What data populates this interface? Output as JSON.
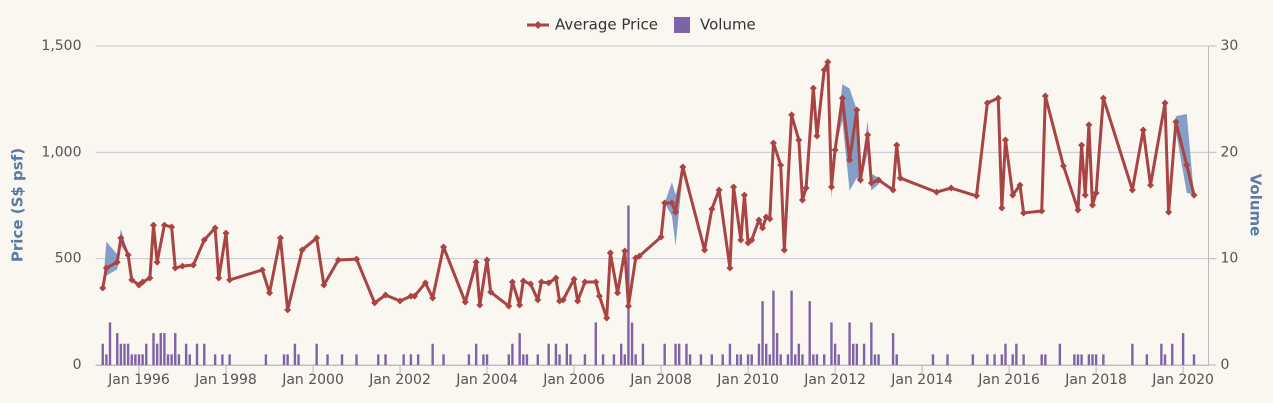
{
  "chart_data": {
    "type": "line",
    "xlim": [
      "1995-01",
      "2020-08"
    ],
    "xticks": [
      {
        "value": "1996-01",
        "label": "Jan 1996"
      },
      {
        "value": "1998-01",
        "label": "Jan 1998"
      },
      {
        "value": "2000-01",
        "label": "Jan 2000"
      },
      {
        "value": "2002-01",
        "label": "Jan 2002"
      },
      {
        "value": "2004-01",
        "label": "Jan 2004"
      },
      {
        "value": "2006-01",
        "label": "Jan 2006"
      },
      {
        "value": "2008-01",
        "label": "Jan 2008"
      },
      {
        "value": "2010-01",
        "label": "Jan 2010"
      },
      {
        "value": "2012-01",
        "label": "Jan 2012"
      },
      {
        "value": "2014-01",
        "label": "Jan 2014"
      },
      {
        "value": "2016-01",
        "label": "Jan 2016"
      },
      {
        "value": "2018-01",
        "label": "Jan 2018"
      },
      {
        "value": "2020-01",
        "label": "Jan 2020"
      }
    ],
    "ylabel": "Price (S$ psf)",
    "ylim": [
      0,
      1500
    ],
    "yticks": [
      0,
      500,
      {
        "value": 1000,
        "label": "1,000"
      },
      {
        "value": 1500,
        "label": "1,500"
      }
    ],
    "y2label": "Volume",
    "y2lim": [
      0,
      30
    ],
    "y2ticks": [
      0,
      10,
      20,
      30
    ],
    "grid": true,
    "legend": "top",
    "range": {
      "color": "#6f8fbf",
      "x": [
        "1995-03",
        "1995-04",
        "1995-07",
        "1995-08",
        "1995-10",
        "2001-01",
        "2008-02",
        "2008-04",
        "2008-05",
        "2008-07",
        "2009-01",
        "2010-01",
        "2011-11",
        "2011-12",
        "2012-01",
        "2012-03",
        "2012-05",
        "2012-07",
        "2012-08",
        "2012-10",
        "2012-11",
        "2013-01",
        "2016-01",
        "2019-09",
        "2019-11",
        "2020-02",
        "2020-04"
      ],
      "low": [
        362,
        420,
        450,
        560,
        517,
        null,
        762,
        700,
        560,
        900,
        541,
        null,
        1425,
        780,
        1011,
        1150,
        820,
        880,
        850,
        1000,
        820,
        850,
        null,
        719,
        1100,
        810,
        799
      ],
      "high": [
        362,
        580,
        520,
        640,
        517,
        null,
        762,
        860,
        800,
        931,
        541,
        null,
        1425,
        837,
        1011,
        1320,
        1300,
        1199,
        900,
        1150,
        900,
        880,
        null,
        719,
        1170,
        1180,
        799
      ]
    },
    "series": [
      {
        "name": "Average Price",
        "color": "#a84444",
        "x": [
          "1995-03",
          "1995-04",
          "1995-07",
          "1995-08",
          "1995-10",
          "1995-11",
          "1996-01",
          "1996-02",
          "1996-04",
          "1996-05",
          "1996-06",
          "1996-08",
          "1996-10",
          "1996-11",
          "1997-01",
          "1997-04",
          "1997-07",
          "1997-10",
          "1997-11",
          "1998-01",
          "1998-02",
          "1998-11",
          "1999-01",
          "1999-04",
          "1999-06",
          "1999-10",
          "2000-02",
          "2000-04",
          "2000-08",
          "2001-01",
          "2001-06",
          "2001-09",
          "2002-01",
          "2002-04",
          "2002-05",
          "2002-08",
          "2002-10",
          "2003-01",
          "2003-07",
          "2003-10",
          "2003-11",
          "2004-01",
          "2004-02",
          "2004-07",
          "2004-08",
          "2004-10",
          "2004-11",
          "2005-01",
          "2005-03",
          "2005-04",
          "2005-06",
          "2005-08",
          "2005-09",
          "2005-10",
          "2006-01",
          "2006-02",
          "2006-04",
          "2006-07",
          "2006-08",
          "2006-10",
          "2006-11",
          "2007-01",
          "2007-03",
          "2007-04",
          "2007-06",
          "2007-07",
          "2008-01",
          "2008-02",
          "2008-04",
          "2008-05",
          "2008-07",
          "2009-01",
          "2009-03",
          "2009-05",
          "2009-08",
          "2009-09",
          "2009-11",
          "2009-12",
          "2010-01",
          "2010-02",
          "2010-04",
          "2010-05",
          "2010-06",
          "2010-07",
          "2010-08",
          "2010-10",
          "2010-11",
          "2011-01",
          "2011-03",
          "2011-04",
          "2011-05",
          "2011-07",
          "2011-08",
          "2011-10",
          "2011-11",
          "2011-12",
          "2012-01",
          "2012-03",
          "2012-05",
          "2012-07",
          "2012-08",
          "2012-10",
          "2012-11",
          "2013-01",
          "2013-05",
          "2013-06",
          "2013-07",
          "2014-05",
          "2014-09",
          "2015-04",
          "2015-07",
          "2015-10",
          "2015-11",
          "2015-12",
          "2016-02",
          "2016-04",
          "2016-05",
          "2016-10",
          "2016-11",
          "2017-04",
          "2017-08",
          "2017-09",
          "2017-10",
          "2017-11",
          "2017-12",
          "2018-01",
          "2018-03",
          "2018-11",
          "2019-02",
          "2019-04",
          "2019-08",
          "2019-09",
          "2019-11",
          "2020-02",
          "2020-04"
        ],
        "values": [
          362,
          456,
          484,
          597,
          517,
          400,
          376,
          390,
          409,
          658,
          484,
          658,
          649,
          456,
          465,
          470,
          588,
          644,
          409,
          620,
          400,
          447,
          339,
          597,
          259,
          541,
          597,
          376,
          494,
          498,
          292,
          329,
          301,
          324,
          324,
          386,
          315,
          555,
          296,
          484,
          282,
          494,
          343,
          277,
          390,
          282,
          395,
          381,
          306,
          390,
          386,
          409,
          301,
          306,
          404,
          301,
          390,
          390,
          324,
          221,
          527,
          339,
          536,
          277,
          503,
          512,
          602,
          762,
          762,
          719,
          931,
          541,
          733,
          823,
          456,
          837,
          588,
          799,
          574,
          588,
          682,
          644,
          696,
          687,
          1044,
          940,
          541,
          1176,
          1058,
          776,
          832,
          1302,
          1077,
          1387,
          1425,
          837,
          1011,
          1255,
          964,
          1199,
          870,
          1082,
          856,
          870,
          823,
          1034,
          879,
          813,
          832,
          795,
          1232,
          1255,
          738,
          1058,
          799,
          846,
          715,
          724,
          1265,
          936,
          729,
          1034,
          799,
          1129,
          752,
          809,
          1255,
          823,
          1105,
          846,
          1232,
          719,
          1143,
          940,
          799
        ]
      },
      {
        "name": "Volume",
        "color": "#8062a6",
        "axis": "y2",
        "type": "bar",
        "x": [
          "1995-03",
          "1995-04",
          "1995-05",
          "1995-07",
          "1995-08",
          "1995-09",
          "1995-10",
          "1995-11",
          "1995-12",
          "1996-01",
          "1996-02",
          "1996-03",
          "1996-05",
          "1996-06",
          "1996-07",
          "1996-08",
          "1996-09",
          "1996-10",
          "1996-11",
          "1996-12",
          "1997-02",
          "1997-03",
          "1997-05",
          "1997-07",
          "1997-10",
          "1997-12",
          "1998-02",
          "1998-12",
          "1999-05",
          "1999-06",
          "1999-08",
          "1999-09",
          "2000-02",
          "2000-05",
          "2000-09",
          "2001-01",
          "2001-07",
          "2001-09",
          "2002-02",
          "2002-04",
          "2002-06",
          "2002-10",
          "2003-01",
          "2003-08",
          "2003-10",
          "2003-12",
          "2004-01",
          "2004-07",
          "2004-08",
          "2004-10",
          "2004-11",
          "2004-12",
          "2005-03",
          "2005-06",
          "2005-08",
          "2005-09",
          "2005-11",
          "2005-12",
          "2006-04",
          "2006-07",
          "2006-09",
          "2006-12",
          "2007-02",
          "2007-03",
          "2007-04",
          "2007-05",
          "2007-06",
          "2007-08",
          "2008-02",
          "2008-05",
          "2008-06",
          "2008-08",
          "2008-09",
          "2008-12",
          "2009-03",
          "2009-06",
          "2009-08",
          "2009-10",
          "2009-11",
          "2010-01",
          "2010-02",
          "2010-04",
          "2010-05",
          "2010-06",
          "2010-07",
          "2010-08",
          "2010-09",
          "2010-10",
          "2010-12",
          "2011-01",
          "2011-02",
          "2011-03",
          "2011-04",
          "2011-06",
          "2011-07",
          "2011-08",
          "2011-10",
          "2011-12",
          "2012-01",
          "2012-02",
          "2012-05",
          "2012-06",
          "2012-07",
          "2012-09",
          "2012-11",
          "2012-12",
          "2013-01",
          "2013-05",
          "2013-06",
          "2014-04",
          "2014-08",
          "2015-03",
          "2015-07",
          "2015-09",
          "2015-11",
          "2015-12",
          "2016-02",
          "2016-03",
          "2016-05",
          "2016-10",
          "2016-11",
          "2017-03",
          "2017-07",
          "2017-08",
          "2017-09",
          "2017-11",
          "2017-12",
          "2018-01",
          "2018-03",
          "2018-11",
          "2019-03",
          "2019-07",
          "2019-08",
          "2019-10",
          "2020-01",
          "2020-04"
        ],
        "values": [
          2,
          1,
          4,
          3,
          2,
          2,
          2,
          1,
          1,
          1,
          1,
          2,
          3,
          2,
          3,
          3,
          1,
          1,
          3,
          1,
          2,
          1,
          2,
          2,
          1,
          1,
          1,
          1,
          1,
          1,
          2,
          1,
          2,
          1,
          1,
          1,
          1,
          1,
          1,
          1,
          1,
          2,
          1,
          1,
          2,
          1,
          1,
          1,
          2,
          3,
          1,
          1,
          1,
          2,
          2,
          1,
          2,
          1,
          1,
          4,
          1,
          1,
          2,
          1,
          15,
          4,
          1,
          2,
          2,
          2,
          2,
          2,
          1,
          1,
          1,
          1,
          2,
          1,
          1,
          1,
          1,
          2,
          6,
          2,
          1,
          7,
          3,
          1,
          1,
          7,
          1,
          2,
          1,
          6,
          1,
          1,
          1,
          4,
          2,
          1,
          4,
          2,
          2,
          2,
          4,
          1,
          1,
          3,
          1,
          1,
          1,
          1,
          1,
          1,
          1,
          2,
          1,
          2,
          1,
          1,
          1,
          2,
          1,
          1,
          1,
          1,
          1,
          1,
          1,
          2,
          1,
          2,
          1,
          2,
          3,
          1
        ]
      }
    ]
  }
}
